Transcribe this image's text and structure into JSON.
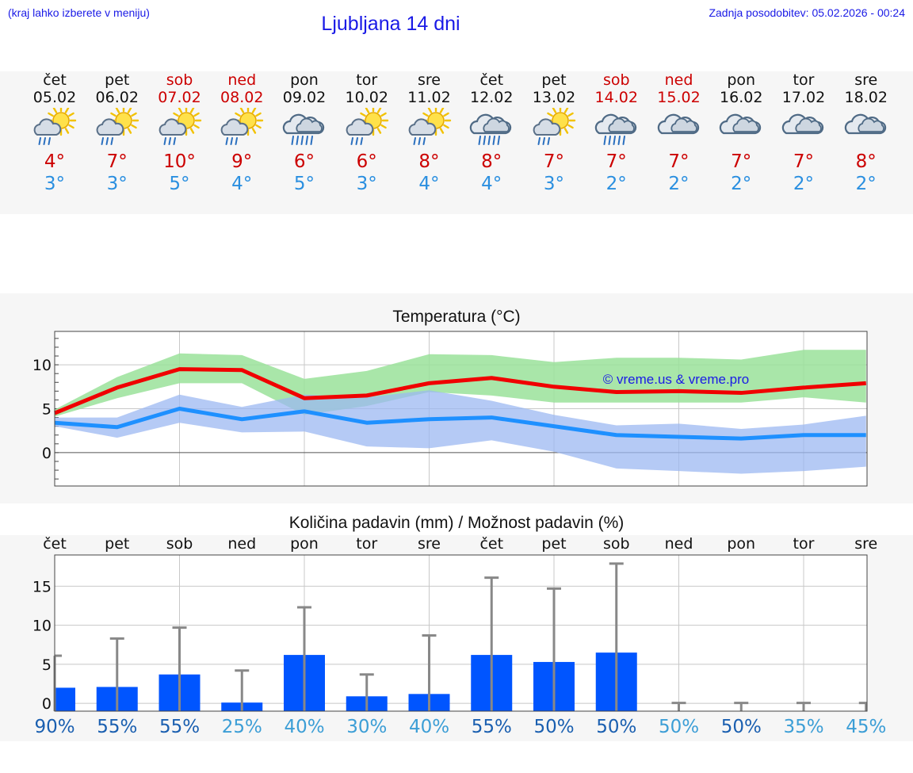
{
  "header": {
    "left_note": "(kraj lahko izberete v meniju)",
    "title": "Ljubljana 14 dni",
    "updated": "Zadnja posodobitev: 05.02.2026 - 00:24"
  },
  "days": [
    {
      "name": "čet",
      "date": "05.02",
      "weekend": false,
      "icon": "sun-cloud-rain-icon",
      "tmax": "4°",
      "tmin": "3°"
    },
    {
      "name": "pet",
      "date": "06.02",
      "weekend": false,
      "icon": "sun-cloud-rain-icon",
      "tmax": "7°",
      "tmin": "3°"
    },
    {
      "name": "sob",
      "date": "07.02",
      "weekend": true,
      "icon": "sun-cloud-rain-icon",
      "tmax": "10°",
      "tmin": "5°"
    },
    {
      "name": "ned",
      "date": "08.02",
      "weekend": true,
      "icon": "sun-cloud-rain-icon",
      "tmax": "9°",
      "tmin": "4°"
    },
    {
      "name": "pon",
      "date": "09.02",
      "weekend": false,
      "icon": "cloud-rain-icon",
      "tmax": "6°",
      "tmin": "5°"
    },
    {
      "name": "tor",
      "date": "10.02",
      "weekend": false,
      "icon": "sun-cloud-rain-icon",
      "tmax": "6°",
      "tmin": "3°"
    },
    {
      "name": "sre",
      "date": "11.02",
      "weekend": false,
      "icon": "sun-cloud-rain-icon",
      "tmax": "8°",
      "tmin": "4°"
    },
    {
      "name": "čet",
      "date": "12.02",
      "weekend": false,
      "icon": "cloud-rain-icon",
      "tmax": "8°",
      "tmin": "4°"
    },
    {
      "name": "pet",
      "date": "13.02",
      "weekend": false,
      "icon": "sun-cloud-rain-icon",
      "tmax": "7°",
      "tmin": "3°"
    },
    {
      "name": "sob",
      "date": "14.02",
      "weekend": true,
      "icon": "cloud-rain-icon",
      "tmax": "7°",
      "tmin": "2°"
    },
    {
      "name": "ned",
      "date": "15.02",
      "weekend": true,
      "icon": "cloud-icon",
      "tmax": "7°",
      "tmin": "2°"
    },
    {
      "name": "pon",
      "date": "16.02",
      "weekend": false,
      "icon": "cloud-icon",
      "tmax": "7°",
      "tmin": "2°"
    },
    {
      "name": "tor",
      "date": "17.02",
      "weekend": false,
      "icon": "cloud-icon",
      "tmax": "7°",
      "tmin": "2°"
    },
    {
      "name": "sre",
      "date": "18.02",
      "weekend": false,
      "icon": "cloud-icon",
      "tmax": "8°",
      "tmin": "2°"
    }
  ],
  "colors": {
    "max": "#f00000",
    "min": "#1e90ff",
    "max_band": "#9ae29a",
    "min_band": "#9cb8f2",
    "bar": "#0055ff",
    "whisker": "#888888",
    "link": "#1a1ae6",
    "pct_dark": "#1a5fb0",
    "pct_light": "#3c9ed6"
  },
  "chart_data": [
    {
      "type": "line",
      "title": "Temperatura (°C)",
      "watermark": "© vreme.us & vreme.pro",
      "x": [
        0,
        1,
        2,
        3,
        4,
        5,
        6,
        7,
        8,
        9,
        10,
        11,
        12,
        13
      ],
      "ylim": [
        -3.8,
        13.8
      ],
      "yticks": [
        0,
        5,
        10
      ],
      "series": [
        {
          "name": "max",
          "values": [
            4.5,
            7.4,
            9.5,
            9.4,
            6.2,
            6.5,
            7.9,
            8.5,
            7.5,
            6.9,
            7.0,
            6.8,
            7.4,
            7.9
          ]
        },
        {
          "name": "min",
          "values": [
            3.4,
            2.9,
            5.0,
            3.8,
            4.7,
            3.4,
            3.8,
            4.0,
            3.0,
            2.0,
            1.8,
            1.6,
            2.0,
            2.0
          ]
        }
      ],
      "bands": [
        {
          "name": "max-range",
          "low": [
            4.1,
            6.2,
            7.9,
            7.9,
            4.3,
            5.3,
            6.9,
            6.5,
            5.7,
            5.7,
            5.7,
            5.7,
            6.3,
            5.7
          ],
          "high": [
            4.9,
            8.6,
            11.3,
            11.1,
            8.4,
            9.3,
            11.2,
            11.1,
            10.3,
            10.8,
            10.8,
            10.6,
            11.7,
            11.7
          ]
        },
        {
          "name": "min-range",
          "low": [
            3.0,
            1.7,
            3.4,
            2.3,
            2.4,
            0.7,
            0.5,
            1.4,
            0.1,
            -1.8,
            -2.1,
            -2.4,
            -2.1,
            -1.6
          ],
          "high": [
            4.0,
            4.0,
            6.6,
            5.2,
            6.6,
            6.3,
            7.1,
            5.9,
            4.3,
            3.1,
            3.3,
            2.7,
            3.2,
            4.2
          ]
        }
      ]
    },
    {
      "type": "bar",
      "title": "Količina padavin (mm) / Možnost padavin (%)",
      "categories": [
        "čet",
        "pet",
        "sob",
        "ned",
        "pon",
        "tor",
        "sre",
        "čet",
        "pet",
        "sob",
        "ned",
        "pon",
        "tor",
        "sre"
      ],
      "values": [
        2.0,
        2.1,
        3.7,
        0.1,
        6.2,
        0.9,
        1.2,
        6.2,
        5.3,
        6.5,
        0,
        0,
        0,
        0
      ],
      "whisker_max": [
        6.1,
        8.3,
        9.7,
        4.2,
        12.3,
        3.7,
        8.7,
        16.1,
        14.7,
        17.9,
        0.05,
        0.05,
        0.05,
        0.05
      ],
      "ylim": [
        -1,
        19
      ],
      "yticks": [
        0,
        5,
        10,
        15
      ],
      "probability": [
        "90%",
        "55%",
        "55%",
        "25%",
        "40%",
        "30%",
        "40%",
        "55%",
        "50%",
        "50%",
        "50%",
        "50%",
        "35%",
        "45%"
      ],
      "probability_tone": [
        "dark",
        "dark",
        "dark",
        "light",
        "light",
        "light",
        "light",
        "dark",
        "dark",
        "dark",
        "light",
        "dark",
        "light",
        "light"
      ]
    }
  ]
}
